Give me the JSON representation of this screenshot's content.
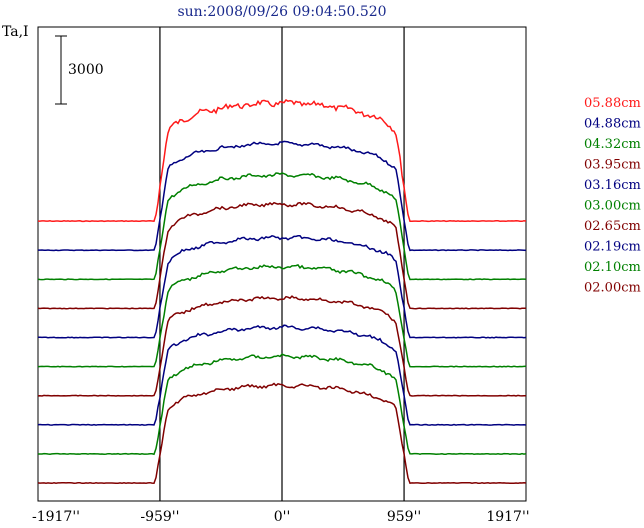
{
  "chart_data": {
    "type": "line",
    "title": "sun:2008/09/26 09:04:50.520",
    "ylabel": "Ta,I",
    "scale_bar_label": "3000",
    "scale_bar_value": 3000,
    "xlim": [
      -1917,
      1917
    ],
    "x_ticks": [
      {
        "value": -1917,
        "label": "-1917''"
      },
      {
        "value": -959,
        "label": "-959''"
      },
      {
        "value": 0,
        "label": "0''"
      },
      {
        "value": 959,
        "label": "959''"
      },
      {
        "value": 1917,
        "label": "1917''"
      }
    ],
    "vertical_markers": [
      -959,
      0,
      959
    ],
    "series": [
      {
        "name": "05.88cm",
        "color": "#ff1a1a",
        "baseline": 10,
        "amplitude": 5200
      },
      {
        "name": "04.88cm",
        "color": "#000080",
        "baseline": 9,
        "amplitude": 4700
      },
      {
        "name": "04.32cm",
        "color": "#008000",
        "baseline": 8,
        "amplitude": 4600
      },
      {
        "name": "03.95cm",
        "color": "#800000",
        "baseline": 7,
        "amplitude": 4600
      },
      {
        "name": "03.16cm",
        "color": "#000080",
        "baseline": 6,
        "amplitude": 4400
      },
      {
        "name": "03.00cm",
        "color": "#008000",
        "baseline": 5,
        "amplitude": 4400
      },
      {
        "name": "02.65cm",
        "color": "#800000",
        "baseline": 4,
        "amplitude": 4300
      },
      {
        "name": "02.19cm",
        "color": "#000080",
        "baseline": 3,
        "amplitude": 4300
      },
      {
        "name": "02.10cm",
        "color": "#008000",
        "baseline": 2,
        "amplitude": 4300
      },
      {
        "name": "02.00cm",
        "color": "#800000",
        "baseline": 1,
        "amplitude": 4300
      }
    ]
  }
}
